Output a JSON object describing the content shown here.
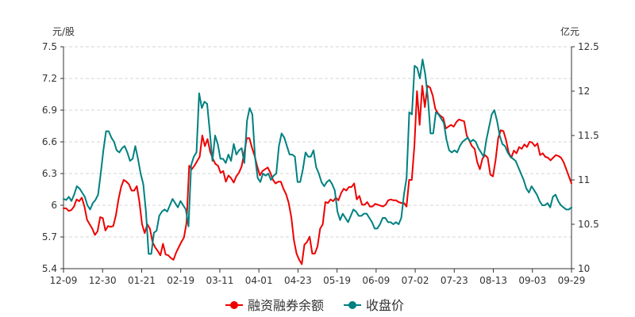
{
  "chart_data": {
    "type": "line",
    "left_unit": "元/股",
    "right_unit": "亿元",
    "x_ticks": [
      "12-09",
      "12-30",
      "01-21",
      "02-19",
      "03-11",
      "04-01",
      "04-23",
      "05-19",
      "06-09",
      "07-02",
      "07-23",
      "08-13",
      "09-03",
      "09-29"
    ],
    "left_axis": {
      "min": 5.4,
      "max": 7.5,
      "ticks": [
        "5.4",
        "5.7",
        "6",
        "6.3",
        "6.6",
        "6.9",
        "7.2",
        "7.5"
      ]
    },
    "right_axis": {
      "min": 10,
      "max": 12.5,
      "ticks": [
        "10",
        "10.5",
        "11",
        "11.5",
        "12",
        "12.5"
      ]
    },
    "grid": "horizontal dashed",
    "legend_position": "bottom-center",
    "series": [
      {
        "name": "融资融券余额",
        "color": "#ee0000",
        "axis": "right",
        "values": [
          10.68,
          10.68,
          10.65,
          10.66,
          10.7,
          10.78,
          10.76,
          10.8,
          10.7,
          10.55,
          10.5,
          10.45,
          10.38,
          10.42,
          10.58,
          10.57,
          10.43,
          10.48,
          10.47,
          10.48,
          10.6,
          10.78,
          10.92,
          11.0,
          10.98,
          10.95,
          10.88,
          10.88,
          10.93,
          10.75,
          10.5,
          10.4,
          10.5,
          10.45,
          10.3,
          10.24,
          10.2,
          10.15,
          10.28,
          10.16,
          10.15,
          10.12,
          10.1,
          10.18,
          10.24,
          10.3,
          10.35,
          10.52,
          11.16,
          11.12,
          11.16,
          11.21,
          11.26,
          11.5,
          11.38,
          11.46,
          11.32,
          11.24,
          11.18,
          11.16,
          11.08,
          11.1,
          10.98,
          11.05,
          11.02,
          10.97,
          11.04,
          11.08,
          11.15,
          11.3,
          11.47,
          11.47,
          11.36,
          11.27,
          11.15,
          11.05,
          11.1,
          11.12,
          11.14,
          11.08,
          11.0,
          10.96,
          10.98,
          10.98,
          10.9,
          10.84,
          10.74,
          10.58,
          10.32,
          10.17,
          10.1,
          10.05,
          10.27,
          10.3,
          10.36,
          10.17,
          10.17,
          10.25,
          10.45,
          10.5,
          10.75,
          10.74,
          10.78,
          10.76,
          10.8,
          10.77,
          10.85,
          10.9,
          10.88,
          10.92,
          10.92,
          10.96,
          10.78,
          10.82,
          10.72,
          10.72,
          10.75,
          10.7,
          10.7,
          10.73,
          10.72,
          10.71,
          10.7,
          10.72,
          10.77,
          10.78,
          10.77,
          10.77,
          10.75,
          10.74,
          10.74,
          10.7,
          11.0,
          11.0,
          11.38,
          12.0,
          11.62,
          12.06,
          11.82,
          12.06,
          12.04,
          11.95,
          11.8,
          11.75,
          11.72,
          11.7,
          11.58,
          11.6,
          11.62,
          11.6,
          11.65,
          11.68,
          11.67,
          11.66,
          11.5,
          11.44,
          11.38,
          11.35,
          11.2,
          11.12,
          11.24,
          11.28,
          11.25,
          11.06,
          11.04,
          11.22,
          11.47,
          11.56,
          11.55,
          11.45,
          11.31,
          11.25,
          11.33,
          11.3,
          11.37,
          11.35,
          11.4,
          11.37,
          11.43,
          11.42,
          11.38,
          11.41,
          11.28,
          11.3,
          11.26,
          11.25,
          11.22,
          11.25,
          11.28,
          11.27,
          11.25,
          11.2,
          11.12,
          11.04,
          10.96
        ]
      },
      {
        "name": "收盘价",
        "color": "#008080",
        "axis": "left",
        "values": [
          6.06,
          6.05,
          6.08,
          6.04,
          6.1,
          6.18,
          6.16,
          6.12,
          6.08,
          6.0,
          5.96,
          6.02,
          6.05,
          6.1,
          6.3,
          6.52,
          6.7,
          6.7,
          6.64,
          6.6,
          6.52,
          6.5,
          6.54,
          6.56,
          6.5,
          6.42,
          6.44,
          6.56,
          6.44,
          6.3,
          6.2,
          5.94,
          5.54,
          5.54,
          5.74,
          5.76,
          5.9,
          5.94,
          5.96,
          5.94,
          6.0,
          6.06,
          6.02,
          5.98,
          6.04,
          6.0,
          5.96,
          5.8,
          6.38,
          6.46,
          6.5,
          7.06,
          6.92,
          6.98,
          6.96,
          6.7,
          6.42,
          6.66,
          6.58,
          6.44,
          6.44,
          6.4,
          6.48,
          6.42,
          6.58,
          6.48,
          6.52,
          6.54,
          6.4,
          6.8,
          6.92,
          6.86,
          6.46,
          6.26,
          6.22,
          6.3,
          6.28,
          6.3,
          6.24,
          6.28,
          6.3,
          6.56,
          6.68,
          6.64,
          6.56,
          6.48,
          6.48,
          6.46,
          6.22,
          6.22,
          6.34,
          6.5,
          6.46,
          6.46,
          6.52,
          6.36,
          6.3,
          6.22,
          6.18,
          6.22,
          6.24,
          6.2,
          6.14,
          5.94,
          5.86,
          5.92,
          5.88,
          5.84,
          5.9,
          5.96,
          5.94,
          5.9,
          5.9,
          5.92,
          5.92,
          5.88,
          5.84,
          5.78,
          5.78,
          5.82,
          5.88,
          5.88,
          5.84,
          5.84,
          5.82,
          5.84,
          5.82,
          5.88,
          6.1,
          6.26,
          6.88,
          6.86,
          7.32,
          7.3,
          7.2,
          7.38,
          7.24,
          7.02,
          6.68,
          6.68,
          6.88,
          6.86,
          6.82,
          6.78,
          6.62,
          6.52,
          6.5,
          6.52,
          6.5,
          6.56,
          6.6,
          6.62,
          6.64,
          6.6,
          6.62,
          6.6,
          6.54,
          6.5,
          6.46,
          6.62,
          6.74,
          6.86,
          6.9,
          6.8,
          6.66,
          6.58,
          6.56,
          6.5,
          6.46,
          6.44,
          6.42,
          6.36,
          6.3,
          6.24,
          6.16,
          6.12,
          6.18,
          6.14,
          6.1,
          6.04,
          6.0,
          6.0,
          6.02,
          5.98,
          6.08,
          6.1,
          6.04,
          6.0,
          5.98,
          5.96,
          5.96,
          5.98
        ]
      }
    ]
  }
}
